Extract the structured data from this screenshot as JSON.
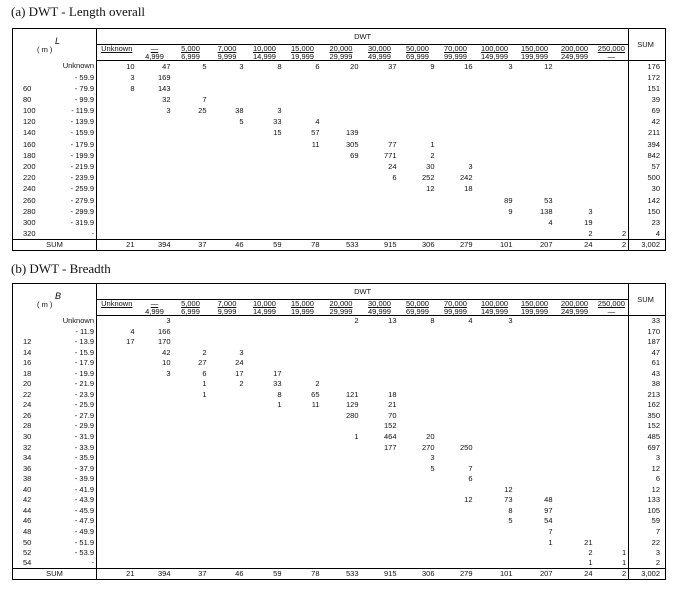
{
  "tables": [
    {
      "title": "(a) DWT - Length overall",
      "dwt": "DWT",
      "corner_var": "L",
      "corner_unit": "( m )",
      "columns": [
        [
          "Unknown"
        ],
        [
          "—",
          "4,999"
        ],
        [
          "5,000",
          "6,999"
        ],
        [
          "7,000",
          "9,999"
        ],
        [
          "10,000",
          "14,999"
        ],
        [
          "15,000",
          "19,999"
        ],
        [
          "20,000",
          "29,999"
        ],
        [
          "30,000",
          "49,999"
        ],
        [
          "50,000",
          "69,999"
        ],
        [
          "70,000",
          "99,999"
        ],
        [
          "100,000",
          "149,999"
        ],
        [
          "150,000",
          "199,999"
        ],
        [
          "200,000",
          "249,999"
        ],
        [
          "250,000",
          "—"
        ]
      ],
      "sum_label": "SUM",
      "rows": [
        {
          "label": "Unknown",
          "cells": [
            10,
            47,
            5,
            3,
            8,
            6,
            20,
            37,
            9,
            16,
            3,
            12,
            null,
            null
          ],
          "sum": 176
        },
        {
          "to": "- 59.9",
          "cells": [
            3,
            169,
            null,
            null,
            null,
            null,
            null,
            null,
            null,
            null,
            null,
            null,
            null,
            null
          ],
          "sum": 172
        },
        {
          "from": "60",
          "to": "- 79.9",
          "cells": [
            8,
            143,
            null,
            null,
            null,
            null,
            null,
            null,
            null,
            null,
            null,
            null,
            null,
            null
          ],
          "sum": 151
        },
        {
          "from": "80",
          "to": "- 99.9",
          "cells": [
            null,
            32,
            7,
            null,
            null,
            null,
            null,
            null,
            null,
            null,
            null,
            null,
            null,
            null
          ],
          "sum": 39
        },
        {
          "from": "100",
          "to": "- 119.9",
          "cells": [
            null,
            3,
            25,
            38,
            3,
            null,
            null,
            null,
            null,
            null,
            null,
            null,
            null,
            null
          ],
          "sum": 69
        },
        {
          "from": "120",
          "to": "- 139.9",
          "cells": [
            null,
            null,
            null,
            5,
            33,
            4,
            null,
            null,
            null,
            null,
            null,
            null,
            null,
            null
          ],
          "sum": 42
        },
        {
          "from": "140",
          "to": "- 159.9",
          "cells": [
            null,
            null,
            null,
            null,
            15,
            57,
            139,
            null,
            null,
            null,
            null,
            null,
            null,
            null
          ],
          "sum": 211
        },
        {
          "from": "160",
          "to": "- 179.9",
          "cells": [
            null,
            null,
            null,
            null,
            null,
            11,
            305,
            77,
            1,
            null,
            null,
            null,
            null,
            null
          ],
          "sum": 394
        },
        {
          "from": "180",
          "to": "- 199.9",
          "cells": [
            null,
            null,
            null,
            null,
            null,
            null,
            69,
            771,
            2,
            null,
            null,
            null,
            null,
            null
          ],
          "sum": 842
        },
        {
          "from": "200",
          "to": "- 219.9",
          "cells": [
            null,
            null,
            null,
            null,
            null,
            null,
            null,
            24,
            30,
            3,
            null,
            null,
            null,
            null
          ],
          "sum": 57
        },
        {
          "from": "220",
          "to": "- 239.9",
          "cells": [
            null,
            null,
            null,
            null,
            null,
            null,
            null,
            6,
            252,
            242,
            null,
            null,
            null,
            null
          ],
          "sum": 500
        },
        {
          "from": "240",
          "to": "- 259.9",
          "cells": [
            null,
            null,
            null,
            null,
            null,
            null,
            null,
            null,
            12,
            18,
            null,
            null,
            null,
            null
          ],
          "sum": 30
        },
        {
          "from": "260",
          "to": "- 279.9",
          "cells": [
            null,
            null,
            null,
            null,
            null,
            null,
            null,
            null,
            null,
            null,
            89,
            53,
            null,
            null
          ],
          "sum": 142
        },
        {
          "from": "280",
          "to": "- 299.9",
          "cells": [
            null,
            null,
            null,
            null,
            null,
            null,
            null,
            null,
            null,
            null,
            9,
            138,
            3,
            null
          ],
          "sum": 150
        },
        {
          "from": "300",
          "to": "- 319.9",
          "cells": [
            null,
            null,
            null,
            null,
            null,
            null,
            null,
            null,
            null,
            null,
            null,
            4,
            19,
            null
          ],
          "sum": 23
        },
        {
          "from": "320",
          "to": "-",
          "cells": [
            null,
            null,
            null,
            null,
            null,
            null,
            null,
            null,
            null,
            null,
            null,
            null,
            2,
            2
          ],
          "sum": 4
        }
      ],
      "total": {
        "label": "SUM",
        "cells": [
          21,
          394,
          37,
          46,
          59,
          78,
          533,
          915,
          306,
          279,
          101,
          207,
          24,
          2
        ],
        "sum": "3,002"
      }
    },
    {
      "title": "(b) DWT - Breadth",
      "dwt": "DWT",
      "corner_var": "B",
      "corner_unit": "( m )",
      "columns": [
        [
          "Unknown"
        ],
        [
          "—",
          "4,999"
        ],
        [
          "5,000",
          "6,999"
        ],
        [
          "7,000",
          "9,999"
        ],
        [
          "10,000",
          "14,999"
        ],
        [
          "15,000",
          "19,999"
        ],
        [
          "20,000",
          "29,999"
        ],
        [
          "30,000",
          "49,999"
        ],
        [
          "50,000",
          "69,999"
        ],
        [
          "70,000",
          "99,999"
        ],
        [
          "100,000",
          "149,999"
        ],
        [
          "150,000",
          "199,999"
        ],
        [
          "200,000",
          "249,999"
        ],
        [
          "250,000",
          "—"
        ]
      ],
      "sum_label": "SUM",
      "rows": [
        {
          "label": "Unknown",
          "cells": [
            null,
            3,
            null,
            null,
            null,
            null,
            2,
            13,
            8,
            4,
            3,
            null,
            null,
            null
          ],
          "sum": 33
        },
        {
          "to": "- 11.9",
          "cells": [
            4,
            166,
            null,
            null,
            null,
            null,
            null,
            null,
            null,
            null,
            null,
            null,
            null,
            null
          ],
          "sum": 170
        },
        {
          "from": "12",
          "to": "- 13.9",
          "cells": [
            17,
            170,
            null,
            null,
            null,
            null,
            null,
            null,
            null,
            null,
            null,
            null,
            null,
            null
          ],
          "sum": 187
        },
        {
          "from": "14",
          "to": "- 15.9",
          "cells": [
            null,
            42,
            2,
            3,
            null,
            null,
            null,
            null,
            null,
            null,
            null,
            null,
            null,
            null
          ],
          "sum": 47
        },
        {
          "from": "16",
          "to": "- 17.9",
          "cells": [
            null,
            10,
            27,
            24,
            null,
            null,
            null,
            null,
            null,
            null,
            null,
            null,
            null,
            null
          ],
          "sum": 61
        },
        {
          "from": "18",
          "to": "- 19.9",
          "cells": [
            null,
            3,
            6,
            17,
            17,
            null,
            null,
            null,
            null,
            null,
            null,
            null,
            null,
            null
          ],
          "sum": 43
        },
        {
          "from": "20",
          "to": "- 21.9",
          "cells": [
            null,
            null,
            1,
            2,
            33,
            2,
            null,
            null,
            null,
            null,
            null,
            null,
            null,
            null
          ],
          "sum": 38
        },
        {
          "from": "22",
          "to": "- 23.9",
          "cells": [
            null,
            null,
            1,
            null,
            8,
            65,
            121,
            18,
            null,
            null,
            null,
            null,
            null,
            null
          ],
          "sum": 213
        },
        {
          "from": "24",
          "to": "- 25.9",
          "cells": [
            null,
            null,
            null,
            null,
            1,
            11,
            129,
            21,
            null,
            null,
            null,
            null,
            null,
            null
          ],
          "sum": 162
        },
        {
          "from": "26",
          "to": "- 27.9",
          "cells": [
            null,
            null,
            null,
            null,
            null,
            null,
            280,
            70,
            null,
            null,
            null,
            null,
            null,
            null
          ],
          "sum": 350
        },
        {
          "from": "28",
          "to": "- 29.9",
          "cells": [
            null,
            null,
            null,
            null,
            null,
            null,
            null,
            152,
            null,
            null,
            null,
            null,
            null,
            null
          ],
          "sum": 152
        },
        {
          "from": "30",
          "to": "- 31.9",
          "cells": [
            null,
            null,
            null,
            null,
            null,
            null,
            1,
            464,
            20,
            null,
            null,
            null,
            null,
            null
          ],
          "sum": 485
        },
        {
          "from": "32",
          "to": "- 33.9",
          "cells": [
            null,
            null,
            null,
            null,
            null,
            null,
            null,
            177,
            270,
            250,
            null,
            null,
            null,
            null
          ],
          "sum": 697
        },
        {
          "from": "34",
          "to": "- 35.9",
          "cells": [
            null,
            null,
            null,
            null,
            null,
            null,
            null,
            null,
            3,
            null,
            null,
            null,
            null,
            null
          ],
          "sum": 3
        },
        {
          "from": "36",
          "to": "- 37.9",
          "cells": [
            null,
            null,
            null,
            null,
            null,
            null,
            null,
            null,
            5,
            7,
            null,
            null,
            null,
            null
          ],
          "sum": 12
        },
        {
          "from": "38",
          "to": "- 39.9",
          "cells": [
            null,
            null,
            null,
            null,
            null,
            null,
            null,
            null,
            null,
            6,
            null,
            null,
            null,
            null
          ],
          "sum": 6
        },
        {
          "from": "40",
          "to": "- 41.9",
          "cells": [
            null,
            null,
            null,
            null,
            null,
            null,
            null,
            null,
            null,
            null,
            12,
            null,
            null,
            null
          ],
          "sum": 12
        },
        {
          "from": "42",
          "to": "- 43.9",
          "cells": [
            null,
            null,
            null,
            null,
            null,
            null,
            null,
            null,
            null,
            12,
            73,
            48,
            null,
            null
          ],
          "sum": 133
        },
        {
          "from": "44",
          "to": "- 45.9",
          "cells": [
            null,
            null,
            null,
            null,
            null,
            null,
            null,
            null,
            null,
            null,
            8,
            97,
            null,
            null
          ],
          "sum": 105
        },
        {
          "from": "46",
          "to": "- 47.9",
          "cells": [
            null,
            null,
            null,
            null,
            null,
            null,
            null,
            null,
            null,
            null,
            5,
            54,
            null,
            null
          ],
          "sum": 59
        },
        {
          "from": "48",
          "to": "- 49.9",
          "cells": [
            null,
            null,
            null,
            null,
            null,
            null,
            null,
            null,
            null,
            null,
            null,
            7,
            null,
            null
          ],
          "sum": 7
        },
        {
          "from": "50",
          "to": "- 51.9",
          "cells": [
            null,
            null,
            null,
            null,
            null,
            null,
            null,
            null,
            null,
            null,
            null,
            1,
            21,
            null
          ],
          "sum": 22
        },
        {
          "from": "52",
          "to": "- 53.9",
          "cells": [
            null,
            null,
            null,
            null,
            null,
            null,
            null,
            null,
            null,
            null,
            null,
            null,
            2,
            1
          ],
          "sum": 3
        },
        {
          "from": "54",
          "to": "-",
          "cells": [
            null,
            null,
            null,
            null,
            null,
            null,
            null,
            null,
            null,
            null,
            null,
            null,
            1,
            1
          ],
          "sum": 2
        }
      ],
      "total": {
        "label": "SUM",
        "cells": [
          21,
          394,
          37,
          46,
          59,
          78,
          533,
          915,
          306,
          279,
          101,
          207,
          24,
          2
        ],
        "sum": "3,002"
      }
    }
  ]
}
